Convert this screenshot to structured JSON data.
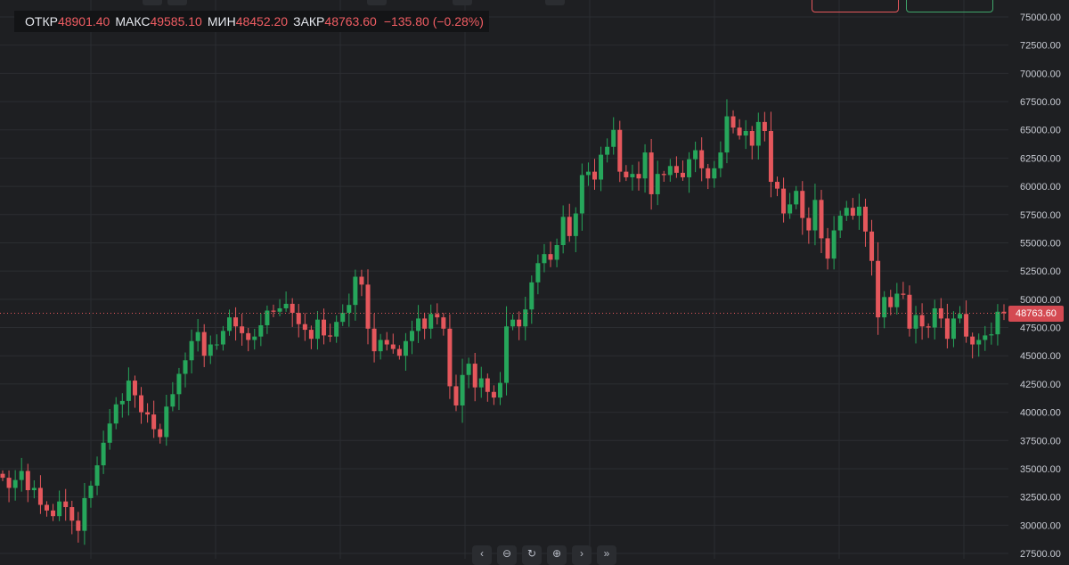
{
  "chart_data": {
    "type": "candlestick",
    "ylim": [
      27500,
      75000
    ],
    "y_ticks": [
      27500,
      30000,
      32500,
      35000,
      37500,
      40000,
      42500,
      45000,
      47500,
      50000,
      52500,
      55000,
      57500,
      60000,
      62500,
      65000,
      67500,
      70000,
      72500,
      75000
    ],
    "y_tick_labels": [
      "27500.00",
      "30000.00",
      "32500.00",
      "35000.00",
      "37500.00",
      "40000.00",
      "42500.00",
      "45000.00",
      "47500.00",
      "50000.00",
      "52500.00",
      "55000.00",
      "57500.00",
      "60000.00",
      "62500.00",
      "65000.00",
      "67500.00",
      "70000.00",
      "72500.00",
      "75000.00"
    ],
    "grid": true,
    "last_price": 48763.6,
    "last_price_label": "48763.60",
    "colors": {
      "up": "#26a65b",
      "down": "#e5575c",
      "background": "#1e1f22",
      "grid": "#2b2d31"
    },
    "close": [
      34200,
      33300,
      34000,
      34800,
      33100,
      33300,
      31800,
      31300,
      30800,
      32100,
      31600,
      30400,
      29500,
      32400,
      33500,
      35300,
      37300,
      39000,
      40700,
      41000,
      42800,
      41500,
      40000,
      39800,
      38500,
      37800,
      40500,
      41600,
      43400,
      44600,
      46300,
      47100,
      45000,
      46000,
      46000,
      47200,
      48400,
      47600,
      47000,
      46400,
      46700,
      47700,
      49000,
      48900,
      49200,
      49600,
      48800,
      47800,
      47300,
      46500,
      48200,
      46800,
      46700,
      48000,
      48800,
      49500,
      52000,
      51300,
      47400,
      45400,
      46400,
      46000,
      45600,
      45000,
      46300,
      47200,
      48300,
      47400,
      48700,
      48400,
      47400,
      42300,
      40600,
      43300,
      44300,
      42200,
      43000,
      41800,
      41300,
      42600,
      47600,
      48200,
      47600,
      49100,
      51500,
      53200,
      54000,
      53500,
      54800,
      57300,
      55600,
      57600,
      61000,
      61300,
      60600,
      62800,
      63500,
      65000,
      61300,
      60800,
      61100,
      60700,
      63000,
      59300,
      61100,
      61000,
      61800,
      61200,
      60800,
      62400,
      63200,
      61600,
      60700,
      61600,
      63000,
      66200,
      65200,
      64500,
      64900,
      63600,
      65700,
      64900,
      60400,
      59800,
      57600,
      58400,
      59600,
      57200,
      56100,
      58800,
      55400,
      53600,
      56100,
      57400,
      58100,
      57400,
      58200,
      56000,
      53400,
      48400,
      50200,
      49300,
      50500,
      50400,
      47400,
      48600,
      47600,
      47500,
      49200,
      48300,
      46500,
      48300,
      48700,
      46700,
      46000,
      46400,
      46800,
      46900,
      48900,
      48763.6
    ],
    "ohlc_legend": {
      "open_label": "ОТКР",
      "open": "48901.40",
      "high_label": "МАКС",
      "high": "49585.10",
      "low_label": "МИН",
      "low": "48452.20",
      "close_label": "ЗАКР",
      "close": "48763.60",
      "change": "−135.80 (−0.28%)"
    }
  },
  "top_right_buttons": {
    "sell_color": "#e5575c",
    "buy_color": "#3fa56a"
  },
  "navigation": {
    "icons": [
      "chevron-left-icon",
      "zoom-out-icon",
      "reset-icon",
      "zoom-in-icon",
      "chevron-right-icon",
      "jump-to-end-icon"
    ],
    "glyphs": [
      "‹",
      "⊖",
      "↻",
      "⊕",
      "›",
      "»"
    ]
  }
}
